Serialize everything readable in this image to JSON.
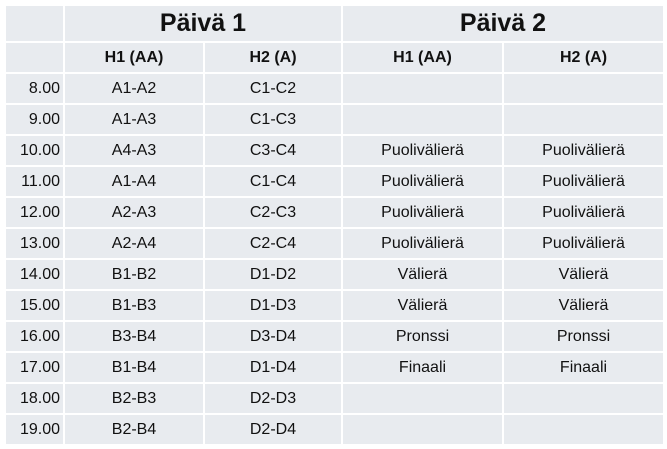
{
  "days": [
    {
      "label": "Päivä 1"
    },
    {
      "label": "Päivä 2"
    }
  ],
  "subheaders": [
    "H1 (AA)",
    "H2 (A)",
    "H1 (AA)",
    "H2 (A)"
  ],
  "rows": [
    [
      "8.00",
      "A1-A2",
      "C1-C2",
      "",
      ""
    ],
    [
      "9.00",
      "A1-A3",
      "C1-C3",
      "",
      ""
    ],
    [
      "10.00",
      "A4-A3",
      "C3-C4",
      "Puolivälierä",
      "Puolivälierä"
    ],
    [
      "11.00",
      "A1-A4",
      "C1-C4",
      "Puolivälierä",
      "Puolivälierä"
    ],
    [
      "12.00",
      "A2-A3",
      "C2-C3",
      "Puolivälierä",
      "Puolivälierä"
    ],
    [
      "13.00",
      "A2-A4",
      "C2-C4",
      "Puolivälierä",
      "Puolivälierä"
    ],
    [
      "14.00",
      "B1-B2",
      "D1-D2",
      "Välierä",
      "Välierä"
    ],
    [
      "15.00",
      "B1-B3",
      "D1-D3",
      "Välierä",
      "Välierä"
    ],
    [
      "16.00",
      "B3-B4",
      "D3-D4",
      "Pronssi",
      "Pronssi"
    ],
    [
      "17.00",
      "B1-B4",
      "D1-D4",
      "Finaali",
      "Finaali"
    ],
    [
      "18.00",
      "B2-B3",
      "D2-D3",
      "",
      ""
    ],
    [
      "19.00",
      "B2-B4",
      "D2-D4",
      "",
      ""
    ]
  ]
}
